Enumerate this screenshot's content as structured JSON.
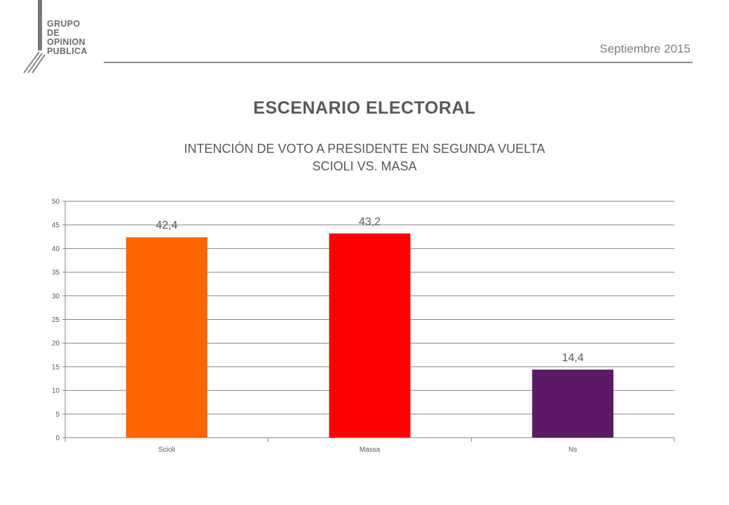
{
  "logo": {
    "lines": [
      "GRUPO",
      "DE",
      "OPINION",
      "PUBLICA"
    ]
  },
  "header": {
    "date": "Septiembre 2015"
  },
  "title": "ESCENARIO ELECTORAL",
  "subtitle": {
    "line1": "INTENCIÓN DE VOTO A PRESIDENTE EN SEGUNDA VUELTA",
    "line2": "SCIOLI VS. MASA"
  },
  "chart_data": {
    "type": "bar",
    "categories": [
      "Scioli",
      "Massa",
      "Ns"
    ],
    "values": [
      42.4,
      43.2,
      14.4
    ],
    "data_labels": [
      "42,4",
      "43,2",
      "14,4"
    ],
    "colors": [
      "#ff6600",
      "#ff0000",
      "#5c1a66"
    ],
    "ylim": [
      0,
      50
    ],
    "yticks": [
      0,
      5,
      10,
      15,
      20,
      25,
      30,
      35,
      40,
      45,
      50
    ],
    "grid": true,
    "xlabel": "",
    "ylabel": ""
  }
}
